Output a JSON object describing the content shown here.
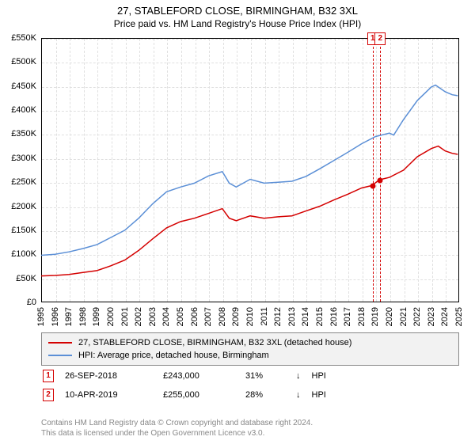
{
  "title": "27, STABLEFORD CLOSE, BIRMINGHAM, B32 3XL",
  "subtitle": "Price paid vs. HM Land Registry's House Price Index (HPI)",
  "chart": {
    "type": "line",
    "background_color": "#ffffff",
    "grid_color": "#e0e0e0",
    "axis_color": "#000000",
    "label_fontsize": 11,
    "y": {
      "min": 0,
      "max": 550000,
      "tick_step": 50000,
      "ticks": [
        "£0",
        "£50K",
        "£100K",
        "£150K",
        "£200K",
        "£250K",
        "£300K",
        "£350K",
        "£400K",
        "£450K",
        "£500K",
        "£550K"
      ]
    },
    "x": {
      "min": 1995,
      "max": 2025,
      "ticks": [
        1995,
        1996,
        1997,
        1998,
        1999,
        2000,
        2001,
        2002,
        2003,
        2004,
        2005,
        2006,
        2007,
        2008,
        2009,
        2010,
        2011,
        2012,
        2013,
        2014,
        2015,
        2016,
        2017,
        2018,
        2019,
        2020,
        2021,
        2022,
        2023,
        2024,
        2025
      ]
    },
    "series": [
      {
        "id": "property",
        "label": "27, STABLEFORD CLOSE, BIRMINGHAM, B32 3XL (detached house)",
        "color": "#d40000",
        "line_width": 1.5,
        "points": [
          [
            1995,
            55000
          ],
          [
            1996,
            56000
          ],
          [
            1997,
            58000
          ],
          [
            1998,
            62000
          ],
          [
            1999,
            66000
          ],
          [
            2000,
            76000
          ],
          [
            2001,
            88000
          ],
          [
            2002,
            108000
          ],
          [
            2003,
            132000
          ],
          [
            2004,
            155000
          ],
          [
            2005,
            168000
          ],
          [
            2006,
            175000
          ],
          [
            2007,
            185000
          ],
          [
            2008,
            195000
          ],
          [
            2008.5,
            175000
          ],
          [
            2009,
            170000
          ],
          [
            2010,
            180000
          ],
          [
            2011,
            175000
          ],
          [
            2012,
            178000
          ],
          [
            2013,
            180000
          ],
          [
            2014,
            190000
          ],
          [
            2015,
            200000
          ],
          [
            2016,
            213000
          ],
          [
            2017,
            225000
          ],
          [
            2018,
            238000
          ],
          [
            2018.74,
            243000
          ],
          [
            2019.28,
            255000
          ],
          [
            2020,
            260000
          ],
          [
            2021,
            275000
          ],
          [
            2022,
            303000
          ],
          [
            2023,
            320000
          ],
          [
            2023.5,
            325000
          ],
          [
            2024,
            315000
          ],
          [
            2024.5,
            310000
          ],
          [
            2024.9,
            308000
          ]
        ]
      },
      {
        "id": "hpi",
        "label": "HPI: Average price, detached house, Birmingham",
        "color": "#5b8fd6",
        "line_width": 1.5,
        "points": [
          [
            1995,
            98000
          ],
          [
            1996,
            100000
          ],
          [
            1997,
            105000
          ],
          [
            1998,
            112000
          ],
          [
            1999,
            120000
          ],
          [
            2000,
            135000
          ],
          [
            2001,
            150000
          ],
          [
            2002,
            175000
          ],
          [
            2003,
            205000
          ],
          [
            2004,
            230000
          ],
          [
            2005,
            240000
          ],
          [
            2006,
            248000
          ],
          [
            2007,
            263000
          ],
          [
            2008,
            272000
          ],
          [
            2008.5,
            248000
          ],
          [
            2009,
            240000
          ],
          [
            2010,
            256000
          ],
          [
            2011,
            248000
          ],
          [
            2012,
            250000
          ],
          [
            2013,
            252000
          ],
          [
            2014,
            262000
          ],
          [
            2015,
            278000
          ],
          [
            2016,
            295000
          ],
          [
            2017,
            312000
          ],
          [
            2018,
            330000
          ],
          [
            2019,
            345000
          ],
          [
            2020,
            352000
          ],
          [
            2020.3,
            348000
          ],
          [
            2021,
            380000
          ],
          [
            2022,
            420000
          ],
          [
            2023,
            448000
          ],
          [
            2023.3,
            452000
          ],
          [
            2024,
            438000
          ],
          [
            2024.5,
            432000
          ],
          [
            2024.9,
            430000
          ]
        ]
      }
    ],
    "markers": [
      {
        "num": "1",
        "x": 2018.74,
        "y": 243000,
        "color": "#d40000"
      },
      {
        "num": "2",
        "x": 2019.28,
        "y": 255000,
        "color": "#d40000"
      }
    ]
  },
  "sales": [
    {
      "num": "1",
      "color": "#d40000",
      "date": "26-SEP-2018",
      "price": "£243,000",
      "pct": "31%",
      "arrow": "↓",
      "vs": "HPI"
    },
    {
      "num": "2",
      "color": "#d40000",
      "date": "10-APR-2019",
      "price": "£255,000",
      "pct": "28%",
      "arrow": "↓",
      "vs": "HPI"
    }
  ],
  "footer": {
    "line1": "Contains HM Land Registry data © Crown copyright and database right 2024.",
    "line2": "This data is licensed under the Open Government Licence v3.0."
  }
}
